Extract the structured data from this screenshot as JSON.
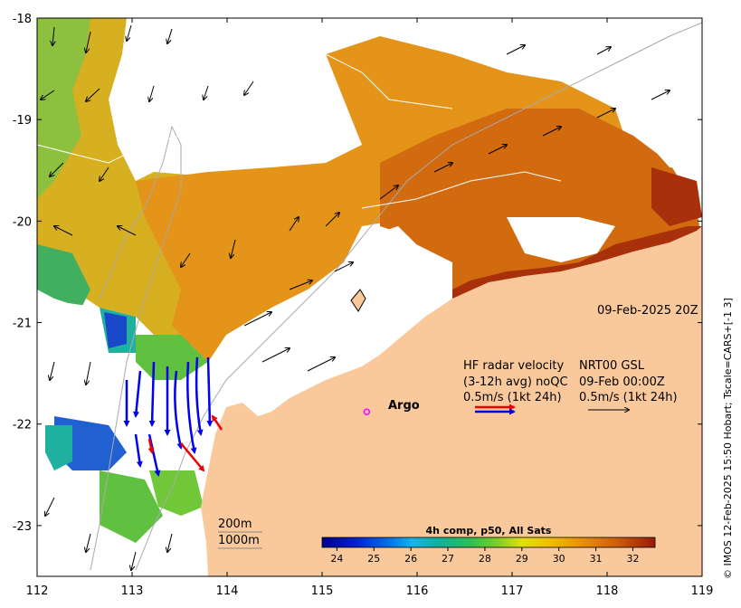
{
  "map": {
    "lon_range": [
      112,
      119
    ],
    "lat_range": [
      -23.5,
      -18
    ],
    "lon_ticks": [
      "112",
      "113",
      "114",
      "115",
      "116",
      "117",
      "118",
      "119"
    ],
    "lat_ticks": [
      "-18",
      "-19",
      "-20",
      "-21",
      "-22",
      "-23"
    ],
    "date_label": "09-Feb-2025 20Z",
    "hf_radar": {
      "line1_left": "HF radar velocity",
      "line2_left": "(3-12h avg) noQC",
      "line3_left": "0.5m/s (1kt 24h)",
      "line1_right": "NRT00 GSL",
      "line2_right": "09-Feb 00:00Z",
      "line3_right": "0.5m/s (1kt 24h)"
    },
    "argo_label": "Argo",
    "argo_position": {
      "lon": 115.47,
      "lat": -21.88
    },
    "contour_labels": [
      "200m",
      "1000m"
    ],
    "colorbar": {
      "title": "4h comp, p50, All Sats",
      "ticks": [
        "24",
        "25",
        "26",
        "27",
        "28",
        "29",
        "30",
        "31",
        "32"
      ],
      "min": 23.6,
      "max": 32.6
    },
    "credit": "© IMOS 12-Feb-2025 15:50 Hobart; Tscale=CARS+[-1 3]",
    "colors": {
      "land": "#f9c99c",
      "sst_orange": "#e08a10",
      "sst_dark": "#a82a08",
      "sst_green": "#58c050",
      "radar_blue": "#0000ee",
      "radar_red": "#ee0000",
      "argo": "#ff00ff"
    }
  }
}
